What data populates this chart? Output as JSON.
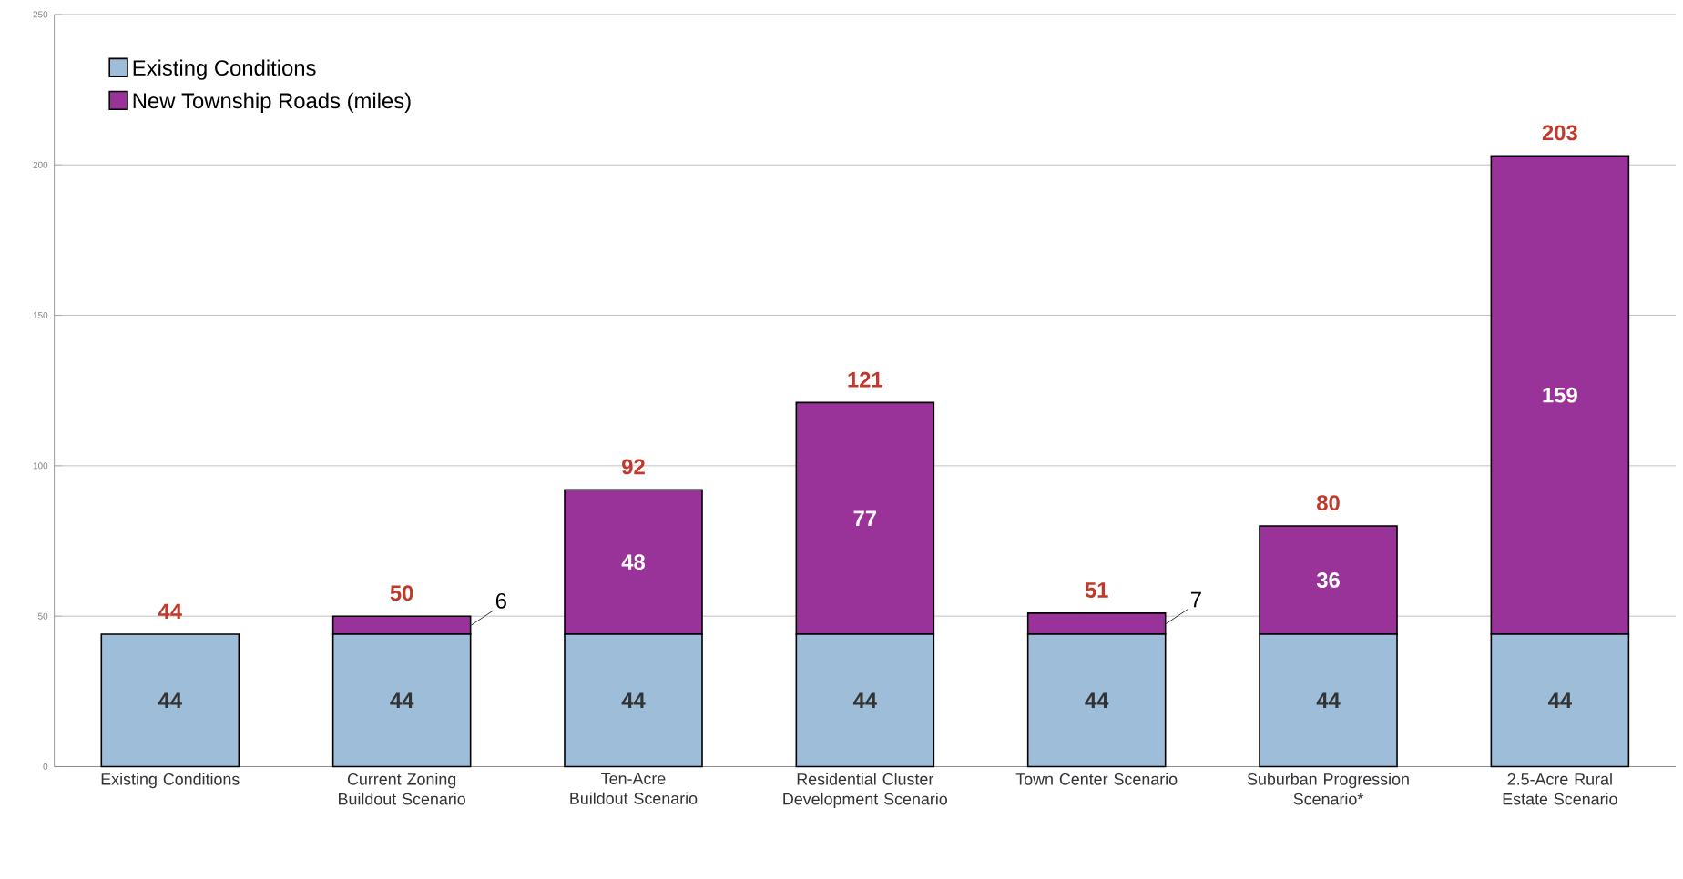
{
  "chart_data": {
    "type": "bar",
    "stacked": true,
    "categories": [
      "Existing Conditions",
      "Current Zoning Buildout Scenario",
      "Ten-Acre Buildout Scenario",
      "Residential Cluster Development Scenario",
      "Town Center Scenario",
      "Suburban Progression Scenario*",
      "2.5-Acre Rural Estate Scenario"
    ],
    "series": [
      {
        "name": "Existing Conditions",
        "color": "#9dbdd8",
        "values": [
          44,
          44,
          44,
          44,
          44,
          44,
          44
        ]
      },
      {
        "name": "New Township Roads (miles)",
        "color": "#993399",
        "values": [
          null,
          6,
          48,
          77,
          7,
          36,
          159
        ]
      }
    ],
    "totals": [
      "44",
      "50",
      "92",
      "121",
      "51",
      "80",
      "203"
    ],
    "data_labels": true,
    "ylim": [
      0,
      250
    ],
    "yticks": [
      0,
      50,
      100,
      150,
      200,
      250
    ],
    "grid": "y",
    "legend": "top left"
  }
}
